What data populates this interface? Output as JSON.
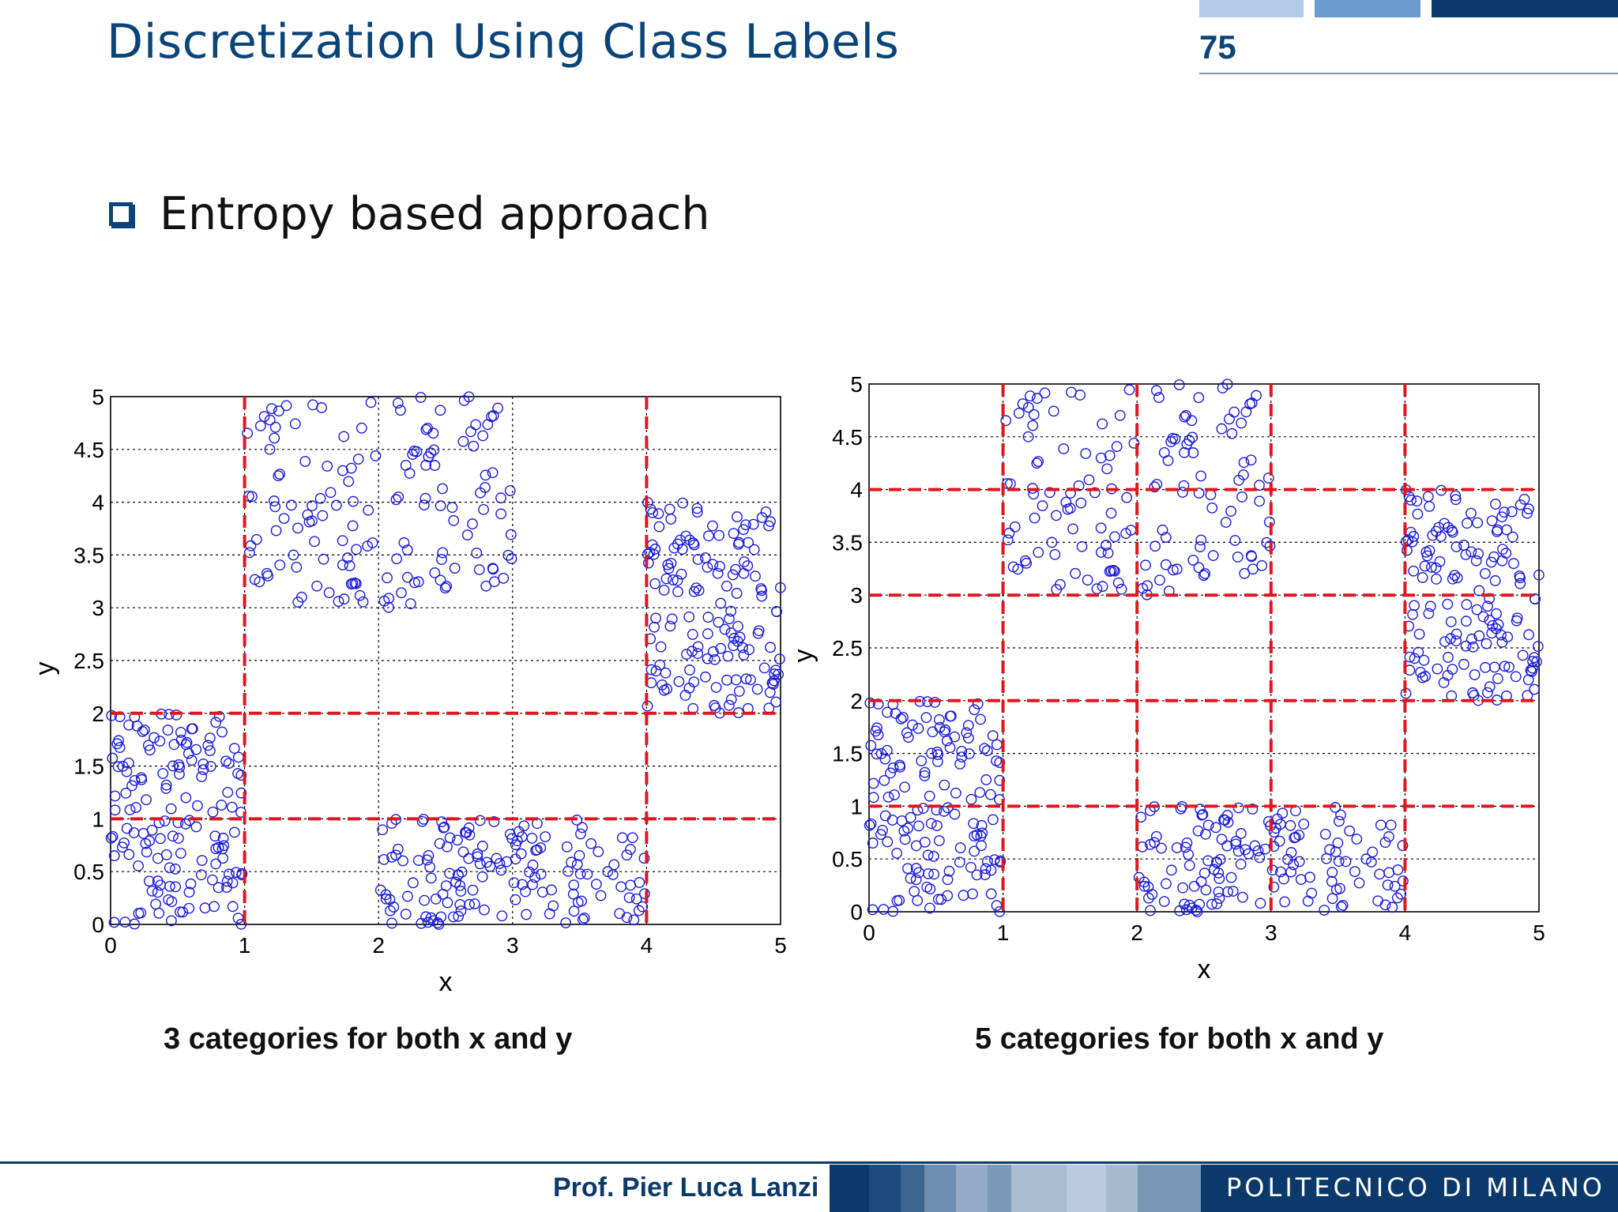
{
  "slide": {
    "title": "Discretization Using Class Labels",
    "page_number": "75",
    "bullet": "Entropy based approach",
    "footer_author": "Prof. Pier Luca Lanzi",
    "footer_brand": "POLITECNICO DI MILANO"
  },
  "colors": {
    "title": "#0b4478",
    "points": "#1a1ad8",
    "cuts": "#e0161e",
    "grid": "#000000"
  },
  "chart_data": [
    {
      "type": "scatter",
      "caption": "3 categories for both x and y",
      "xlabel": "x",
      "ylabel": "y",
      "xlim": [
        0,
        5
      ],
      "ylim": [
        0,
        5
      ],
      "xticks": [
        "0",
        "1",
        "2",
        "3",
        "4",
        "5"
      ],
      "yticks": [
        "0",
        "0.5",
        "1",
        "1.5",
        "2",
        "2.5",
        "3",
        "3.5",
        "4",
        "4.5",
        "5"
      ],
      "grid": true,
      "marker": "open-circle",
      "cuts_x": [
        1,
        4
      ],
      "cuts_y": [
        1,
        2
      ],
      "seed": 7,
      "clusters": [
        {
          "x": [
            0,
            1
          ],
          "y": [
            0,
            2
          ],
          "count": 150
        },
        {
          "x": [
            1,
            3
          ],
          "y": [
            3,
            5
          ],
          "count": 150
        },
        {
          "x": [
            4,
            5
          ],
          "y": [
            2,
            4
          ],
          "count": 150
        },
        {
          "x": [
            2,
            4
          ],
          "y": [
            0,
            1
          ],
          "count": 150
        }
      ]
    },
    {
      "type": "scatter",
      "caption": "5 categories for both x and y",
      "xlabel": "x",
      "ylabel": "y",
      "xlim": [
        0,
        5
      ],
      "ylim": [
        0,
        5
      ],
      "xticks": [
        "0",
        "1",
        "2",
        "3",
        "4",
        "5"
      ],
      "yticks": [
        "0",
        "0.5",
        "1",
        "1.5",
        "2",
        "2.5",
        "3",
        "3.5",
        "4",
        "4.5",
        "5"
      ],
      "grid": true,
      "marker": "open-circle",
      "cuts_x": [
        1,
        2,
        3,
        4
      ],
      "cuts_y": [
        1,
        2,
        3,
        4
      ],
      "seed": 7,
      "clusters": [
        {
          "x": [
            0,
            1
          ],
          "y": [
            0,
            2
          ],
          "count": 150
        },
        {
          "x": [
            1,
            3
          ],
          "y": [
            3,
            5
          ],
          "count": 150
        },
        {
          "x": [
            4,
            5
          ],
          "y": [
            2,
            4
          ],
          "count": 150
        },
        {
          "x": [
            2,
            4
          ],
          "y": [
            0,
            1
          ],
          "count": 150
        }
      ]
    }
  ]
}
